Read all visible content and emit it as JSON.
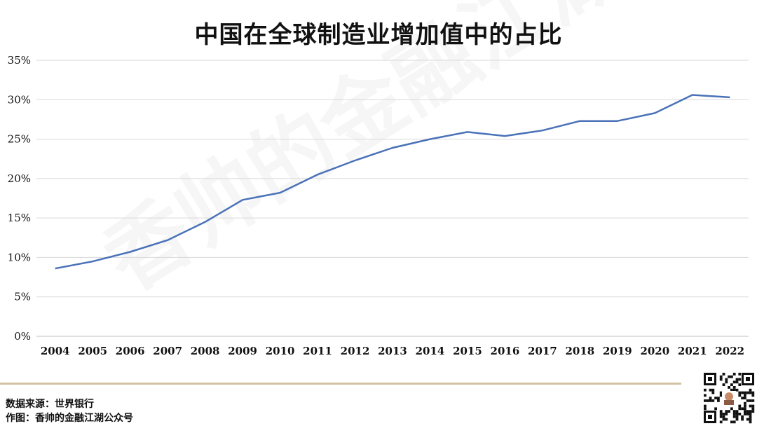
{
  "chart_data": {
    "type": "line",
    "title": "中国在全球制造业增加值中的占比",
    "xlabel": "",
    "ylabel": "",
    "x": [
      "2004",
      "2005",
      "2006",
      "2007",
      "2008",
      "2009",
      "2010",
      "2011",
      "2012",
      "2013",
      "2014",
      "2015",
      "2016",
      "2017",
      "2018",
      "2019",
      "2020",
      "2021",
      "2022"
    ],
    "series": [
      {
        "values": [
          8.6,
          9.5,
          10.7,
          12.2,
          14.5,
          17.3,
          18.2,
          20.5,
          22.3,
          23.9,
          25.0,
          25.9,
          25.4,
          26.1,
          27.3,
          27.3,
          28.3,
          30.6,
          30.3
        ],
        "color": "#4a72b8"
      }
    ],
    "ylim": [
      0,
      35
    ],
    "yticks": [
      0,
      5,
      10,
      15,
      20,
      25,
      30,
      35
    ],
    "ytick_labels": [
      "0%",
      "5%",
      "10%",
      "15%",
      "20%",
      "25%",
      "30%",
      "35%"
    ],
    "grid": true,
    "legend": "none"
  },
  "footer": {
    "source": "数据来源：世界银行",
    "author": "作图：香帅的金融江湖公众号"
  },
  "watermark": "香帅的金融江湖",
  "colors": {
    "line": "#4a72b8",
    "grid": "#d9d9d9",
    "divider": "#d4c3a3"
  }
}
